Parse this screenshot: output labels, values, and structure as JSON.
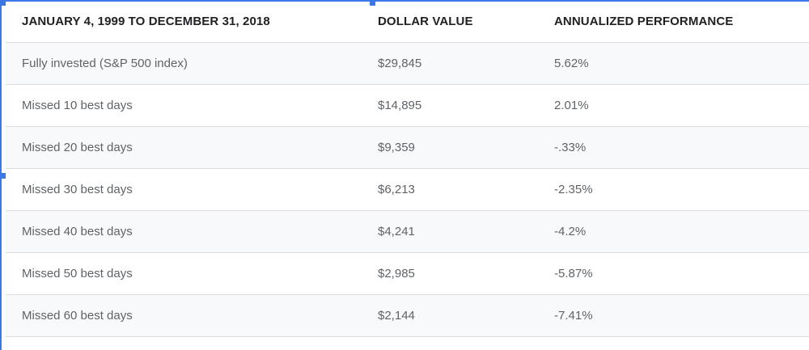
{
  "table": {
    "headers": [
      "JANUARY 4, 1999 TO DECEMBER 31, 2018",
      "DOLLAR VALUE",
      "ANNUALIZED PERFORMANCE"
    ],
    "rows": [
      [
        "Fully invested (S&P 500 index)",
        "$29,845",
        "5.62%"
      ],
      [
        "Missed 10 best days",
        "$14,895",
        "2.01%"
      ],
      [
        "Missed 20 best days",
        "$9,359",
        "-.33%"
      ],
      [
        "Missed 30 best days",
        "$6,213",
        "-2.35%"
      ],
      [
        "Missed 40 best days",
        "$4,241",
        "-4.2%"
      ],
      [
        "Missed 50 best days",
        "$2,985",
        "-5.87%"
      ],
      [
        "Missed 60 best days",
        "$2,144",
        "-7.41%"
      ]
    ]
  },
  "colors": {
    "selection": "#3b78e7",
    "header_text": "#202124",
    "cell_text": "#5f6368",
    "row_stripe": "#f8f9fa",
    "divider": "#dadce0"
  }
}
